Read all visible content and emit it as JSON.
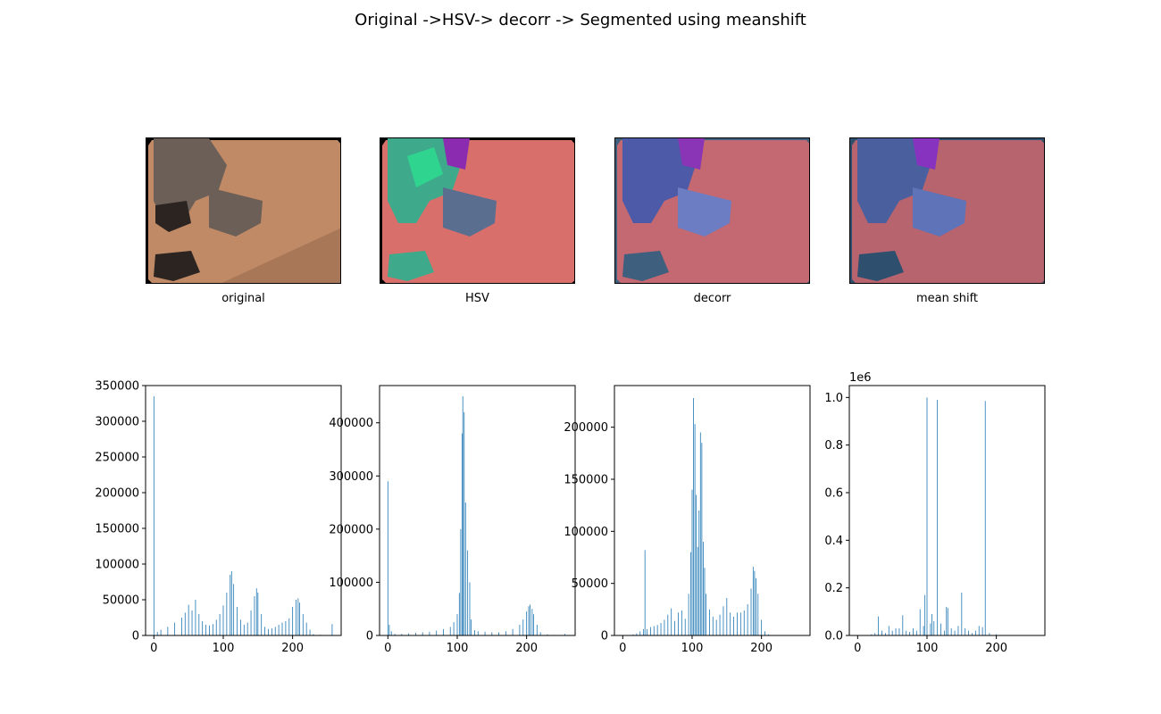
{
  "figure": {
    "title": "Original ->HSV-> decorr -> Segmented using meanshift"
  },
  "image_panels": [
    {
      "label": "original",
      "palette": [
        "#c08a66",
        "#a87758",
        "#6b5f57",
        "#2b2420",
        "#000000"
      ]
    },
    {
      "label": "HSV",
      "palette": [
        "#d96f6b",
        "#3fa98c",
        "#2fd58f",
        "#8a2bb0",
        "#5a6f90"
      ]
    },
    {
      "label": "decorr",
      "palette": [
        "#c46871",
        "#4d5aa8",
        "#6c7dc4",
        "#8a35b5",
        "#3e5f7d"
      ]
    },
    {
      "label": "mean shift",
      "palette": [
        "#b7646f",
        "#4a5f9e",
        "#5e73b8",
        "#8833c0",
        "#2e4f6e"
      ]
    }
  ],
  "chart_data": [
    {
      "type": "bar",
      "title": "",
      "xlabel": "",
      "ylabel": "",
      "xlim": [
        -12,
        270
      ],
      "ylim": [
        0,
        350000
      ],
      "xticks": [
        0,
        100,
        200
      ],
      "yticks": [
        0,
        50000,
        100000,
        150000,
        200000,
        250000,
        300000,
        350000
      ],
      "ytick_labels": [
        "0",
        "50000",
        "100000",
        "150000",
        "200000",
        "250000",
        "300000",
        "350000"
      ],
      "color": "#1f77b4",
      "series": [
        {
          "x": [
            0,
            5,
            10,
            20,
            30,
            40,
            45,
            50,
            55,
            60,
            65,
            70,
            75,
            80,
            85,
            90,
            95,
            100,
            105,
            110,
            112,
            115,
            120,
            125,
            130,
            135,
            140,
            145,
            148,
            150,
            155,
            160,
            165,
            170,
            175,
            180,
            185,
            190,
            195,
            200,
            205,
            208,
            210,
            215,
            220,
            225,
            230,
            240,
            250,
            257,
            260
          ],
          "values": [
            335000,
            5000,
            8000,
            12000,
            18000,
            25000,
            32000,
            43000,
            35000,
            50000,
            30000,
            20000,
            15000,
            14000,
            16000,
            22000,
            30000,
            42000,
            60000,
            85000,
            90000,
            72000,
            40000,
            22000,
            15000,
            18000,
            35000,
            55000,
            66000,
            60000,
            30000,
            12000,
            9000,
            10000,
            12000,
            15000,
            18000,
            20000,
            24000,
            40000,
            50000,
            52000,
            46000,
            30000,
            18000,
            8000,
            2000,
            1000,
            500,
            16000,
            0
          ]
        }
      ]
    },
    {
      "type": "bar",
      "title": "",
      "xlabel": "",
      "ylabel": "",
      "xlim": [
        -12,
        270
      ],
      "ylim": [
        0,
        470000
      ],
      "xticks": [
        0,
        100,
        200
      ],
      "yticks": [
        0,
        100000,
        200000,
        300000,
        400000
      ],
      "ytick_labels": [
        "0",
        "100000",
        "200000",
        "300000",
        "400000"
      ],
      "color": "#1f77b4",
      "series": [
        {
          "x": [
            0,
            2,
            5,
            10,
            20,
            30,
            40,
            50,
            60,
            70,
            80,
            90,
            95,
            100,
            103,
            105,
            107,
            108,
            110,
            112,
            115,
            118,
            120,
            125,
            130,
            140,
            150,
            160,
            170,
            180,
            190,
            195,
            200,
            203,
            205,
            208,
            210,
            215,
            220,
            230,
            240,
            250,
            255
          ],
          "values": [
            290000,
            20000,
            8000,
            3000,
            3000,
            4000,
            5000,
            6000,
            7000,
            9000,
            12000,
            16000,
            25000,
            40000,
            80000,
            200000,
            380000,
            450000,
            420000,
            250000,
            160000,
            100000,
            30000,
            10000,
            8000,
            7000,
            6000,
            6000,
            8000,
            12000,
            20000,
            30000,
            45000,
            55000,
            58000,
            50000,
            40000,
            20000,
            6000,
            2000,
            1000,
            500,
            3000
          ]
        }
      ]
    },
    {
      "type": "bar",
      "title": "",
      "xlabel": "",
      "ylabel": "",
      "xlim": [
        -12,
        270
      ],
      "ylim": [
        0,
        240000
      ],
      "xticks": [
        0,
        100,
        200
      ],
      "yticks": [
        0,
        50000,
        100000,
        150000,
        200000
      ],
      "ytick_labels": [
        "0",
        "50000",
        "100000",
        "150000",
        "200000"
      ],
      "color": "#1f77b4",
      "series": [
        {
          "x": [
            15,
            20,
            25,
            30,
            32,
            35,
            40,
            45,
            50,
            55,
            60,
            65,
            70,
            75,
            80,
            85,
            90,
            95,
            98,
            100,
            102,
            104,
            106,
            108,
            110,
            112,
            114,
            116,
            118,
            120,
            125,
            130,
            135,
            140,
            145,
            150,
            155,
            160,
            165,
            170,
            175,
            180,
            185,
            188,
            190,
            192,
            195,
            200,
            205,
            210
          ],
          "values": [
            1000,
            2000,
            4000,
            6000,
            82000,
            6000,
            8000,
            9000,
            10000,
            12000,
            15000,
            20000,
            26000,
            14000,
            22000,
            24000,
            16000,
            40000,
            80000,
            140000,
            228000,
            203000,
            135000,
            85000,
            120000,
            195000,
            185000,
            90000,
            65000,
            40000,
            25000,
            18000,
            15000,
            20000,
            28000,
            36000,
            22000,
            18000,
            22000,
            22000,
            24000,
            30000,
            45000,
            66000,
            62000,
            55000,
            40000,
            15000,
            4000,
            1000
          ]
        }
      ]
    },
    {
      "type": "bar",
      "title": "",
      "xlabel": "",
      "ylabel": "",
      "offset_label": "1e6",
      "xlim": [
        -12,
        270
      ],
      "ylim": [
        0,
        1.05
      ],
      "xticks": [
        0,
        100,
        200
      ],
      "yticks": [
        0,
        0.2,
        0.4,
        0.6,
        0.8,
        1.0
      ],
      "ytick_labels": [
        "0.0",
        "0.2",
        "0.4",
        "0.6",
        "0.8",
        "1.0"
      ],
      "color": "#1f77b4",
      "series": [
        {
          "x": [
            20,
            25,
            30,
            35,
            40,
            45,
            50,
            55,
            60,
            65,
            70,
            75,
            80,
            85,
            90,
            95,
            97,
            100,
            105,
            107,
            110,
            115,
            120,
            125,
            128,
            130,
            135,
            140,
            145,
            150,
            155,
            160,
            165,
            170,
            175,
            180,
            184,
            190,
            200
          ],
          "values": [
            0.005,
            0.01,
            0.08,
            0.02,
            0.01,
            0.04,
            0.02,
            0.03,
            0.03,
            0.085,
            0.02,
            0.015,
            0.03,
            0.02,
            0.11,
            0.04,
            0.17,
            1.0,
            0.05,
            0.09,
            0.06,
            0.99,
            0.05,
            0.02,
            0.12,
            0.115,
            0.03,
            0.02,
            0.04,
            0.18,
            0.03,
            0.02,
            0.01,
            0.02,
            0.04,
            0.035,
            0.985,
            0.01,
            0.005
          ]
        }
      ]
    }
  ]
}
